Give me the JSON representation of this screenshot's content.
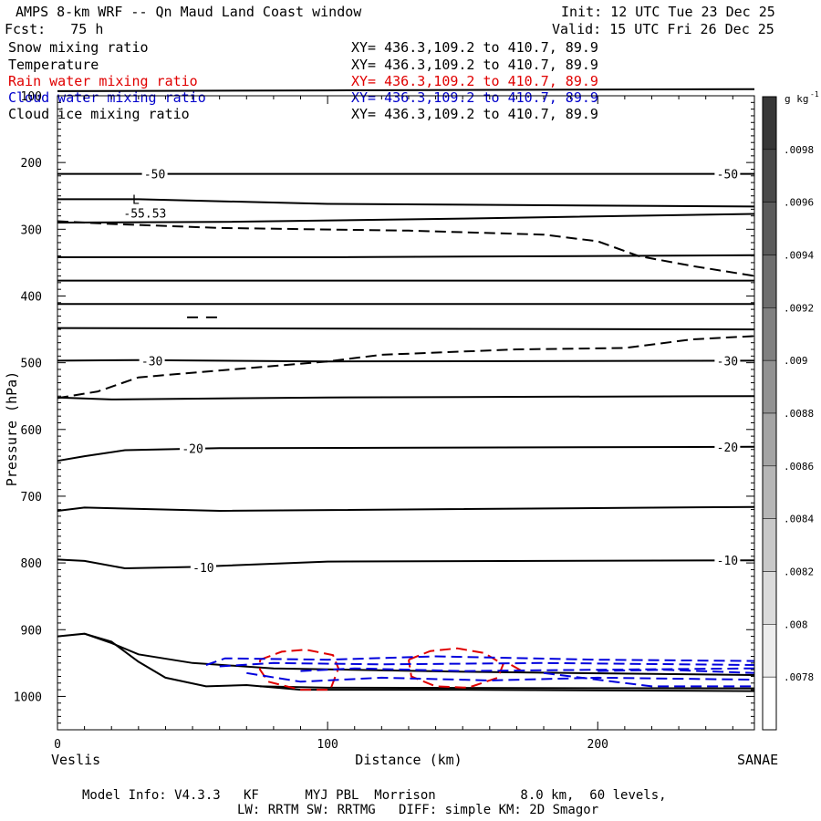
{
  "header": {
    "title": "AMPS 8-km WRF -- Qn Maud Land Coast window",
    "init": "Init: 12 UTC Tue 23 Dec 25",
    "fcst": "Fcst:   75 h",
    "valid": "Valid: 15 UTC Fri 26 Dec 25"
  },
  "legend": [
    {
      "label": "Snow mixing ratio",
      "xy": "XY= 436.3,109.2 to 410.7, 89.9",
      "color": "#000000"
    },
    {
      "label": "Temperature",
      "xy": "XY= 436.3,109.2 to 410.7, 89.9",
      "color": "#000000"
    },
    {
      "label": "Rain water mixing ratio",
      "xy": "XY= 436.3,109.2 to 410.7, 89.9",
      "color": "#e00000"
    },
    {
      "label": "Cloud water mixing ratio",
      "xy": "XY= 436.3,109.2 to 410.7, 89.9",
      "color": "#0000cc"
    },
    {
      "label": "Cloud ice mixing ratio",
      "xy": "XY= 436.3,109.2 to 410.7, 89.9",
      "color": "#000000"
    }
  ],
  "footer": {
    "line1": "Model Info: V4.3.3   KF      MYJ PBL  Morrison           8.0 km,  60 levels,",
    "line2": "LW: RRTM SW: RRTMG   DIFF: simple KM: 2D Smagor"
  },
  "chart_data": {
    "type": "cross-section contour",
    "xlabel": "Distance (km)",
    "ylabel": "Pressure (hPa)",
    "x_range": [
      0,
      258
    ],
    "y_range": [
      1050,
      100
    ],
    "x_ticks": [
      0,
      100,
      200
    ],
    "y_ticks": [
      100,
      200,
      300,
      400,
      500,
      600,
      700,
      800,
      900,
      1000
    ],
    "x_endpoint_labels": {
      "left": "Veslis",
      "right": "SANAE"
    },
    "temperature_contours_C": [
      -60,
      -55,
      -50,
      -45,
      -40,
      -35,
      -30,
      -25,
      -20,
      -15,
      -10,
      -5
    ],
    "temperature_labels": [
      {
        "text": "-50",
        "x": 36,
        "p": 217
      },
      {
        "text": "-50",
        "x": 248,
        "p": 217
      },
      {
        "text": "-30",
        "x": 35,
        "p": 497
      },
      {
        "text": "-30",
        "x": 248,
        "p": 497
      },
      {
        "text": "-20",
        "x": 50,
        "p": 628
      },
      {
        "text": "-20",
        "x": 248,
        "p": 626
      },
      {
        "text": "-10",
        "x": 54,
        "p": 807
      },
      {
        "text": "-10",
        "x": 248,
        "p": 796
      }
    ],
    "minimum_label": {
      "text": "L",
      "value": "-55.53",
      "x": 29,
      "p": 262
    },
    "colorbar": {
      "units": "g kg",
      "units_exponent": "-1",
      "ticks": [
        ".0098",
        ".0096",
        ".0094",
        ".0092",
        ".009",
        ".0088",
        ".0086",
        ".0084",
        ".0082",
        ".008",
        ".0078"
      ]
    }
  }
}
